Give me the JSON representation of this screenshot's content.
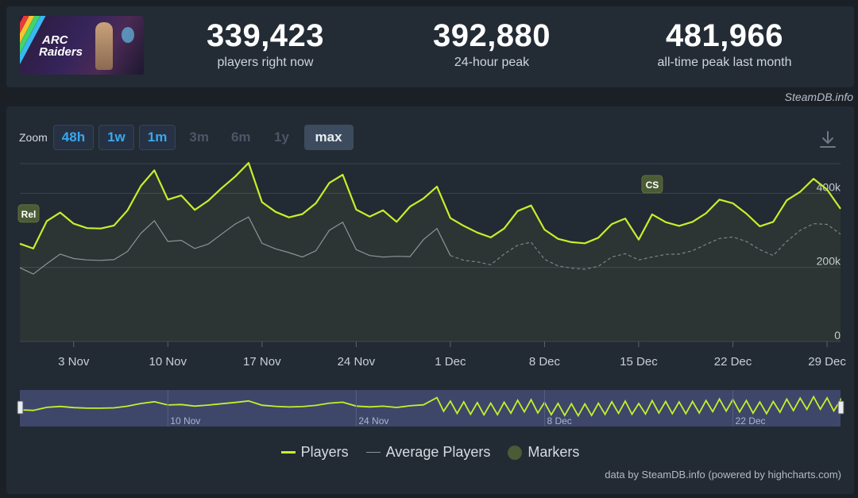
{
  "header": {
    "game_logo": {
      "line1": "ARC",
      "line2": "Raiders"
    },
    "stats": [
      {
        "value": "339,423",
        "label": "players right now"
      },
      {
        "value": "392,880",
        "label": "24-hour peak"
      },
      {
        "value": "481,966",
        "label": "all-time peak last month"
      }
    ],
    "credit": "SteamDB.info"
  },
  "zoom": {
    "label": "Zoom",
    "buttons": [
      {
        "label": "48h",
        "state": "enabled"
      },
      {
        "label": "1w",
        "state": "enabled"
      },
      {
        "label": "1m",
        "state": "enabled"
      },
      {
        "label": "3m",
        "state": "disabled"
      },
      {
        "label": "6m",
        "state": "disabled"
      },
      {
        "label": "1y",
        "state": "disabled"
      },
      {
        "label": "max",
        "state": "selected"
      }
    ],
    "download_icon": "download-icon"
  },
  "legend": {
    "players": "Players",
    "average": "Average Players",
    "markers": "Markers"
  },
  "credit_bottom": "data by SteamDB.info (powered by highcharts.com)",
  "colors": {
    "players": "#c6ef2c",
    "average": "#8d939b",
    "marker": "#4b5b35",
    "navigator_bg": "#3e4769"
  },
  "chart_data": {
    "type": "line",
    "x_axis": {
      "type": "date",
      "range": [
        "2025-10-30",
        "2025-12-30"
      ],
      "tick_labels": [
        "3 Nov",
        "10 Nov",
        "17 Nov",
        "24 Nov",
        "1 Dec",
        "8 Dec",
        "15 Dec",
        "22 Dec",
        "29 Dec"
      ],
      "tick_dates": [
        "2025-11-03",
        "2025-11-10",
        "2025-11-17",
        "2025-11-24",
        "2025-12-01",
        "2025-12-08",
        "2025-12-15",
        "2025-12-22",
        "2025-12-29"
      ]
    },
    "y_axis": {
      "ylim": [
        0,
        480000
      ],
      "tick_values": [
        0,
        200000,
        400000
      ],
      "tick_labels": [
        "0",
        "200k",
        "400k"
      ],
      "grid": true
    },
    "series": [
      {
        "name": "Players",
        "points": [
          [
            "2025-10-30",
            264000
          ],
          [
            "2025-10-31",
            251000
          ],
          [
            "2025-11-01",
            325000
          ],
          [
            "2025-11-02",
            348000
          ],
          [
            "2025-11-03",
            318000
          ],
          [
            "2025-11-04",
            306000
          ],
          [
            "2025-11-05",
            305000
          ],
          [
            "2025-11-06",
            313000
          ],
          [
            "2025-11-07",
            354000
          ],
          [
            "2025-11-08",
            420000
          ],
          [
            "2025-11-09",
            462000
          ],
          [
            "2025-11-10",
            383000
          ],
          [
            "2025-11-11",
            394000
          ],
          [
            "2025-11-12",
            355000
          ],
          [
            "2025-11-13",
            380000
          ],
          [
            "2025-11-14",
            414000
          ],
          [
            "2025-11-15",
            445000
          ],
          [
            "2025-11-16",
            482000
          ],
          [
            "2025-11-17",
            376000
          ],
          [
            "2025-11-18",
            350000
          ],
          [
            "2025-11-19",
            335000
          ],
          [
            "2025-11-20",
            344000
          ],
          [
            "2025-11-21",
            373000
          ],
          [
            "2025-11-22",
            428000
          ],
          [
            "2025-11-23",
            450000
          ],
          [
            "2025-11-24",
            356000
          ],
          [
            "2025-11-25",
            337000
          ],
          [
            "2025-11-26",
            354000
          ],
          [
            "2025-11-27",
            323000
          ],
          [
            "2025-11-28",
            364000
          ],
          [
            "2025-11-29",
            386000
          ],
          [
            "2025-11-30",
            418000
          ],
          [
            "2025-12-01",
            333000
          ],
          [
            "2025-12-02",
            312000
          ],
          [
            "2025-12-03",
            294000
          ],
          [
            "2025-12-04",
            281000
          ],
          [
            "2025-12-05",
            305000
          ],
          [
            "2025-12-06",
            352000
          ],
          [
            "2025-12-07",
            367000
          ],
          [
            "2025-12-08",
            302000
          ],
          [
            "2025-12-09",
            277000
          ],
          [
            "2025-12-10",
            268000
          ],
          [
            "2025-12-11",
            265000
          ],
          [
            "2025-12-12",
            280000
          ],
          [
            "2025-12-13",
            317000
          ],
          [
            "2025-12-14",
            332000
          ],
          [
            "2025-12-15",
            275000
          ],
          [
            "2025-12-16",
            343000
          ],
          [
            "2025-12-17",
            322000
          ],
          [
            "2025-12-18",
            312000
          ],
          [
            "2025-12-19",
            323000
          ],
          [
            "2025-12-20",
            346000
          ],
          [
            "2025-12-21",
            383000
          ],
          [
            "2025-12-22",
            373000
          ],
          [
            "2025-12-23",
            345000
          ],
          [
            "2025-12-24",
            311000
          ],
          [
            "2025-12-25",
            323000
          ],
          [
            "2025-12-26",
            381000
          ],
          [
            "2025-12-27",
            404000
          ],
          [
            "2025-12-28",
            439000
          ],
          [
            "2025-12-29",
            410000
          ],
          [
            "2025-12-30",
            358000
          ]
        ]
      },
      {
        "name": "Average Players",
        "points": [
          [
            "2025-10-30",
            199000
          ],
          [
            "2025-10-31",
            182000
          ],
          [
            "2025-11-01",
            210000
          ],
          [
            "2025-11-02",
            236000
          ],
          [
            "2025-11-03",
            224000
          ],
          [
            "2025-11-04",
            220000
          ],
          [
            "2025-11-05",
            219000
          ],
          [
            "2025-11-06",
            221000
          ],
          [
            "2025-11-07",
            243000
          ],
          [
            "2025-11-08",
            292000
          ],
          [
            "2025-11-09",
            326000
          ],
          [
            "2025-11-10",
            270000
          ],
          [
            "2025-11-11",
            273000
          ],
          [
            "2025-11-12",
            251000
          ],
          [
            "2025-11-13",
            263000
          ],
          [
            "2025-11-14",
            290000
          ],
          [
            "2025-11-15",
            317000
          ],
          [
            "2025-11-16",
            336000
          ],
          [
            "2025-11-17",
            265000
          ],
          [
            "2025-11-18",
            250000
          ],
          [
            "2025-11-19",
            240000
          ],
          [
            "2025-11-20",
            228000
          ],
          [
            "2025-11-21",
            245000
          ],
          [
            "2025-11-22",
            300000
          ],
          [
            "2025-11-23",
            322000
          ],
          [
            "2025-11-24",
            248000
          ],
          [
            "2025-11-25",
            232000
          ],
          [
            "2025-11-26",
            228000
          ],
          [
            "2025-11-27",
            230000
          ],
          [
            "2025-11-28",
            229000
          ],
          [
            "2025-11-29",
            275000
          ],
          [
            "2025-11-30",
            305000
          ],
          [
            "2025-12-01",
            232000
          ],
          [
            "2025-12-02",
            219000
          ],
          [
            "2025-12-03",
            215000
          ],
          [
            "2025-12-04",
            207000
          ],
          [
            "2025-12-05",
            236000
          ],
          [
            "2025-12-06",
            260000
          ],
          [
            "2025-12-07",
            268000
          ],
          [
            "2025-12-08",
            222000
          ],
          [
            "2025-12-09",
            204000
          ],
          [
            "2025-12-10",
            198000
          ],
          [
            "2025-12-11",
            195000
          ],
          [
            "2025-12-12",
            203000
          ],
          [
            "2025-12-13",
            228000
          ],
          [
            "2025-12-14",
            237000
          ],
          [
            "2025-12-15",
            220000
          ],
          [
            "2025-12-16",
            228000
          ],
          [
            "2025-12-17",
            235000
          ],
          [
            "2025-12-18",
            236000
          ],
          [
            "2025-12-19",
            245000
          ],
          [
            "2025-12-20",
            262000
          ],
          [
            "2025-12-21",
            278000
          ],
          [
            "2025-12-22",
            282000
          ],
          [
            "2025-12-23",
            270000
          ],
          [
            "2025-12-24",
            248000
          ],
          [
            "2025-12-25",
            232000
          ],
          [
            "2025-12-26",
            270000
          ],
          [
            "2025-12-27",
            300000
          ],
          [
            "2025-12-28",
            318000
          ],
          [
            "2025-12-29",
            316000
          ],
          [
            "2025-12-30",
            290000
          ]
        ]
      }
    ],
    "markers": [
      {
        "label": "Rel",
        "date": "2025-10-30"
      },
      {
        "label": "CS",
        "date": "2025-12-16"
      }
    ],
    "navigator": {
      "tick_labels": [
        "10 Nov",
        "24 Nov",
        "8 Dec",
        "22 Dec"
      ],
      "tick_dates": [
        "2025-11-10",
        "2025-11-24",
        "2025-12-08",
        "2025-12-22"
      ]
    },
    "legend_position": "bottom-center"
  }
}
